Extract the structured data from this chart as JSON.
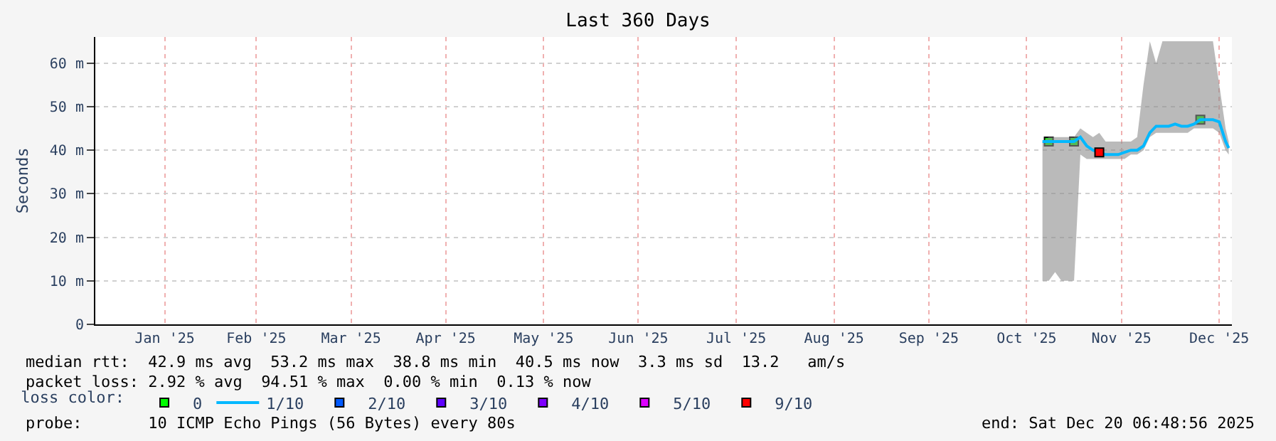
{
  "chart_data": {
    "type": "line",
    "title": "Last 360 Days",
    "ylabel": "Seconds",
    "x": [
      "2025-10-21",
      "2025-10-23",
      "2025-10-25",
      "2025-10-27",
      "2025-10-29",
      "2025-10-31",
      "2025-11-02",
      "2025-11-04",
      "2025-11-06",
      "2025-11-08",
      "2025-11-10",
      "2025-11-12",
      "2025-11-14",
      "2025-11-16",
      "2025-11-18",
      "2025-11-20",
      "2025-11-22",
      "2025-11-24",
      "2025-11-26",
      "2025-11-28",
      "2025-11-30",
      "2025-12-02",
      "2025-12-04",
      "2025-12-06",
      "2025-12-08",
      "2025-12-10",
      "2025-12-12",
      "2025-12-14",
      "2025-12-16",
      "2025-12-18",
      "2025-12-19"
    ],
    "series": [
      {
        "name": "0",
        "type": "scatter",
        "color": "#00ff00",
        "values": [
          null,
          42,
          null,
          null,
          null,
          42,
          null,
          null,
          null,
          null,
          null,
          null,
          null,
          null,
          null,
          null,
          null,
          null,
          null,
          null,
          null,
          null,
          null,
          null,
          null,
          47,
          null,
          null,
          null,
          null,
          null
        ]
      },
      {
        "name": "1/10",
        "color": "#00b8ff",
        "values": [
          42,
          42,
          42,
          42,
          42,
          42,
          43,
          41,
          40,
          39.5,
          39,
          39,
          39,
          39.5,
          40,
          40,
          41,
          44,
          45.5,
          45.5,
          45.5,
          46,
          45.5,
          45.5,
          46,
          47,
          47,
          47,
          46.5,
          42,
          40.5
        ],
        "lower": [
          10,
          10,
          12,
          10,
          10,
          10,
          39,
          38,
          38,
          38,
          38,
          38,
          38,
          38,
          39,
          39,
          40,
          43,
          44,
          44,
          44,
          44,
          44,
          44,
          45,
          45,
          45,
          45,
          44,
          40,
          39
        ],
        "upper": [
          42,
          43,
          43,
          43,
          43,
          43,
          45,
          44,
          43,
          44,
          42,
          42,
          42,
          42,
          42,
          43,
          55,
          65,
          60,
          65,
          65,
          65,
          65,
          65,
          65,
          65,
          65,
          65,
          55,
          45,
          42
        ]
      },
      {
        "name": "2/10",
        "type": "scatter",
        "color": "#0059ff",
        "values": [
          null,
          null,
          null,
          null,
          null,
          null,
          null,
          null,
          null,
          null,
          null,
          null,
          null,
          null,
          null,
          null,
          null,
          null,
          null,
          null,
          null,
          null,
          null,
          null,
          null,
          null,
          null,
          null,
          null,
          null,
          null
        ]
      },
      {
        "name": "3/10",
        "type": "scatter",
        "color": "#5e00ff",
        "values": [
          null,
          null,
          null,
          null,
          null,
          null,
          null,
          null,
          null,
          null,
          null,
          null,
          null,
          null,
          null,
          null,
          null,
          null,
          null,
          null,
          null,
          null,
          null,
          null,
          null,
          null,
          null,
          null,
          null,
          null,
          null
        ]
      },
      {
        "name": "4/10",
        "type": "scatter",
        "color": "#7e00ff",
        "values": [
          null,
          null,
          null,
          null,
          null,
          null,
          null,
          null,
          null,
          null,
          null,
          null,
          null,
          null,
          null,
          null,
          null,
          null,
          null,
          null,
          null,
          null,
          null,
          null,
          null,
          null,
          null,
          null,
          null,
          null,
          null
        ]
      },
      {
        "name": "5/10",
        "type": "scatter",
        "color": "#dd00ff",
        "values": [
          null,
          null,
          null,
          null,
          null,
          null,
          null,
          null,
          null,
          null,
          null,
          null,
          null,
          null,
          null,
          null,
          null,
          null,
          null,
          null,
          null,
          null,
          null,
          null,
          null,
          null,
          null,
          null,
          null,
          null,
          null
        ]
      },
      {
        "name": "9/10",
        "type": "scatter",
        "color": "#ff0000",
        "values": [
          null,
          null,
          null,
          null,
          null,
          null,
          null,
          null,
          null,
          39.5,
          null,
          null,
          null,
          null,
          null,
          null,
          null,
          null,
          null,
          null,
          null,
          null,
          null,
          null,
          null,
          null,
          null,
          null,
          null,
          null,
          null
        ]
      }
    ],
    "xlim": [
      "2024-12-25",
      "2025-12-20"
    ],
    "xticks": [
      {
        "value": "2025-01-16",
        "label": "Jan '25"
      },
      {
        "value": "2025-02-14",
        "label": "Feb '25"
      },
      {
        "value": "2025-03-16",
        "label": "Mar '25"
      },
      {
        "value": "2025-04-15",
        "label": "Apr '25"
      },
      {
        "value": "2025-05-16",
        "label": "May '25"
      },
      {
        "value": "2025-06-15",
        "label": "Jun '25"
      },
      {
        "value": "2025-07-16",
        "label": "Jul '25"
      },
      {
        "value": "2025-08-16",
        "label": "Aug '25"
      },
      {
        "value": "2025-09-15",
        "label": "Sep '25"
      },
      {
        "value": "2025-10-16",
        "label": "Oct '25"
      },
      {
        "value": "2025-11-15",
        "label": "Nov '25"
      },
      {
        "value": "2025-12-16",
        "label": "Dec '25"
      }
    ],
    "ylim": [
      0,
      66
    ],
    "yticks": [
      0,
      {
        "value": 10,
        "label": "10 m"
      },
      {
        "value": 20,
        "label": "20 m"
      },
      {
        "value": 30,
        "label": "30 m"
      },
      {
        "value": 40,
        "label": "40 m"
      },
      {
        "value": 50,
        "label": "50 m"
      },
      {
        "value": 60,
        "label": "60 m"
      }
    ],
    "grid": true,
    "legend": "bottom",
    "legend_title": "loss color:",
    "annotations": [
      "median rtt:  42.9 ms avg  53.2 ms max  38.8 ms min  40.5 ms now  3.3 ms sd  13.2   am/s",
      "packet loss: 2.92 % avg  94.51 % max  0.00 % min  0.13 % now",
      "probe:       10 ICMP Echo Pings (56 Bytes) every 80s",
      "end: Sat Dec 20 06:48:56 2025"
    ]
  }
}
